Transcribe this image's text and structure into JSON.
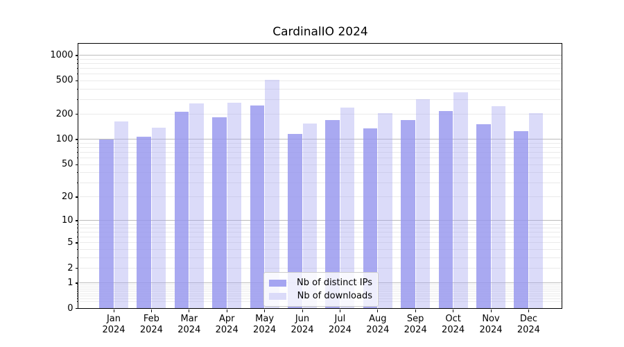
{
  "title": "CardinalIO 2024",
  "colors": {
    "background": "#ffffff",
    "axis": "#000000",
    "grid_major": "#bbbbbb",
    "grid_minor": "#eaeaea",
    "legend_border": "#cccccc",
    "legend_background": "rgba(255,255,255,0.8)",
    "series_ips": "#a5a5f1",
    "series_downloads": "#dbdbf9"
  },
  "chart_data": {
    "type": "bar",
    "title": "CardinalIO 2024",
    "xlabel": "",
    "ylabel": "",
    "yscale": "log1p",
    "ylim": [
      0,
      1380
    ],
    "grid": true,
    "legend_position": "lower center",
    "categories": [
      "Jan 2024",
      "Feb 2024",
      "Mar 2024",
      "Apr 2024",
      "May 2024",
      "Jun 2024",
      "Jul 2024",
      "Aug 2024",
      "Sep 2024",
      "Oct 2024",
      "Nov 2024",
      "Dec 2024"
    ],
    "x_ticks": [
      {
        "line1": "Jan",
        "line2": "2024"
      },
      {
        "line1": "Feb",
        "line2": "2024"
      },
      {
        "line1": "Mar",
        "line2": "2024"
      },
      {
        "line1": "Apr",
        "line2": "2024"
      },
      {
        "line1": "May",
        "line2": "2024"
      },
      {
        "line1": "Jun",
        "line2": "2024"
      },
      {
        "line1": "Jul",
        "line2": "2024"
      },
      {
        "line1": "Aug",
        "line2": "2024"
      },
      {
        "line1": "Sep",
        "line2": "2024"
      },
      {
        "line1": "Oct",
        "line2": "2024"
      },
      {
        "line1": "Nov",
        "line2": "2024"
      },
      {
        "line1": "Dec",
        "line2": "2024"
      }
    ],
    "y_tick_labels": [
      {
        "value": 1000,
        "label": "1000"
      },
      {
        "value": 500,
        "label": "500"
      },
      {
        "value": 200,
        "label": "200"
      },
      {
        "value": 100,
        "label": "100"
      },
      {
        "value": 50,
        "label": "50"
      },
      {
        "value": 20,
        "label": "20"
      },
      {
        "value": 10,
        "label": "10"
      },
      {
        "value": 5,
        "label": "5"
      },
      {
        "value": 2,
        "label": "2"
      },
      {
        "value": 1,
        "label": "1"
      },
      {
        "value": 0,
        "label": "0"
      }
    ],
    "y_grid_major": [
      1,
      10,
      100,
      1000
    ],
    "y_grid_minor": [
      0.2,
      0.3,
      0.4,
      0.5,
      0.6,
      0.7,
      0.8,
      0.9,
      2,
      3,
      4,
      5,
      6,
      7,
      8,
      9,
      20,
      30,
      40,
      50,
      60,
      70,
      80,
      90,
      200,
      300,
      400,
      500,
      600,
      700,
      800,
      900
    ],
    "series": [
      {
        "name": "Nb of distinct IPs",
        "color": "#a5a5f1",
        "fill": "rgba(150,150,238,0.82)",
        "values": [
          100,
          108,
          215,
          184,
          255,
          116,
          171,
          136,
          171,
          218,
          151,
          125
        ]
      },
      {
        "name": "Nb of downloads",
        "color": "#dbdbf9",
        "fill": "rgba(160,160,240,0.38)",
        "values": [
          165,
          138,
          270,
          276,
          515,
          154,
          242,
          205,
          300,
          368,
          249,
          206
        ]
      }
    ]
  }
}
